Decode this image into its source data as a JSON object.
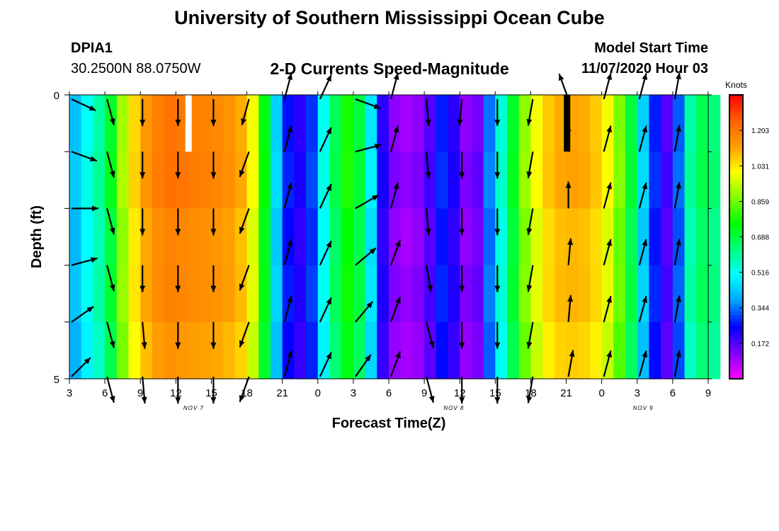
{
  "title": "University of Southern Mississippi Ocean Cube",
  "station": {
    "id": "DPIA1",
    "coords": "30.2500N 88.0750W"
  },
  "model_start": {
    "label": "Model Start Time",
    "value": "11/07/2020 Hour 03"
  },
  "footer_title": "University of Southern Mississippi Ocean Cube",
  "chart_data": {
    "type": "heatmap",
    "title": "2-D Currents Speed-Magnitude",
    "xlabel": "Forecast Time(Z)",
    "ylabel": "Depth (ft)",
    "x_tick_labels": [
      "3",
      "6",
      "9",
      "12",
      "15",
      "18",
      "21",
      "0",
      "3",
      "6",
      "9",
      "12",
      "15",
      "18",
      "21",
      "0",
      "3",
      "6",
      "9"
    ],
    "x_hours": [
      0,
      3,
      6,
      9,
      12,
      15,
      18,
      21,
      24,
      27,
      30,
      33,
      36,
      39,
      42,
      45,
      48,
      51,
      54
    ],
    "xlim": [
      0,
      54
    ],
    "date_labels": [
      {
        "text": "NOV 7",
        "hour": 10.5
      },
      {
        "text": "NOV 8",
        "hour": 32.5
      },
      {
        "text": "NOV 9",
        "hour": 48.5
      }
    ],
    "y_tick_labels": [
      "0",
      "5"
    ],
    "ylim": [
      0,
      5
    ],
    "depth_bins": 5,
    "colorbar": {
      "unit": "Knots",
      "ticks": [
        "1.203",
        "1.031",
        "0.859",
        "0.688",
        "0.516",
        "0.344",
        "0.172"
      ],
      "min": 0.0,
      "max": 1.375,
      "colors": [
        "#ff00ff",
        "#8000ff",
        "#0000ff",
        "#00a0ff",
        "#00ffff",
        "#00ff80",
        "#00ff00",
        "#80ff00",
        "#ffff00",
        "#ffa000",
        "#ff6000",
        "#ff0000"
      ]
    },
    "speed_by_hour": [
      0.43,
      0.52,
      0.6,
      0.72,
      0.92,
      1.06,
      1.15,
      1.2,
      1.22,
      1.21,
      1.2,
      1.19,
      1.18,
      1.16,
      1.12,
      1.0,
      0.75,
      0.45,
      0.27,
      0.22,
      0.3,
      0.52,
      0.68,
      0.78,
      0.7,
      0.48,
      0.22,
      0.12,
      0.1,
      0.12,
      0.18,
      0.28,
      0.22,
      0.12,
      0.15,
      0.35,
      0.55,
      0.72,
      0.9,
      1.0,
      1.08,
      1.12,
      1.13,
      1.12,
      1.08,
      1.0,
      0.88,
      0.7,
      0.45,
      0.28,
      0.18,
      0.33,
      0.6,
      0.68,
      0.64
    ],
    "vector_columns": [
      {
        "hour": 0,
        "angles": [
          115,
          110,
          90,
          75,
          55,
          45
        ]
      },
      {
        "hour": 3,
        "angles": [
          165,
          165,
          165,
          165,
          165,
          165
        ]
      },
      {
        "hour": 6,
        "angles": [
          180,
          180,
          180,
          180,
          175,
          175
        ]
      },
      {
        "hour": 9,
        "angles": [
          180,
          180,
          180,
          180,
          180,
          180
        ]
      },
      {
        "hour": 12,
        "angles": [
          180,
          180,
          180,
          180,
          180,
          180
        ]
      },
      {
        "hour": 15,
        "angles": [
          195,
          200,
          200,
          200,
          200,
          200
        ]
      },
      {
        "hour": 18,
        "angles": [
          15,
          15,
          15,
          15,
          15,
          15
        ]
      },
      {
        "hour": 21,
        "angles": [
          25,
          25,
          25,
          25,
          25,
          25
        ]
      },
      {
        "hour": 24,
        "angles": [
          110,
          75,
          60,
          50,
          40,
          35
        ]
      },
      {
        "hour": 27,
        "angles": [
          15,
          15,
          15,
          20,
          20,
          20
        ]
      },
      {
        "hour": 30,
        "angles": [
          175,
          175,
          175,
          170,
          165,
          165
        ]
      },
      {
        "hour": 33,
        "angles": [
          185,
          180,
          180,
          180,
          180,
          180
        ]
      },
      {
        "hour": 36,
        "angles": [
          180,
          180,
          180,
          180,
          180,
          180
        ]
      },
      {
        "hour": 39,
        "angles": [
          190,
          190,
          190,
          190,
          190,
          190
        ]
      },
      {
        "hour": 42,
        "angles": [
          340,
          0,
          0,
          5,
          5,
          10
        ]
      },
      {
        "hour": 45,
        "angles": [
          15,
          15,
          15,
          15,
          15,
          15
        ]
      },
      {
        "hour": 48,
        "angles": [
          15,
          15,
          15,
          15,
          15,
          15
        ]
      },
      {
        "hour": 51,
        "angles": [
          10,
          10,
          10,
          10,
          10,
          10
        ]
      }
    ],
    "vector_depth_rows": [
      0.05,
      1.0,
      2.0,
      3.0,
      4.0,
      5.0
    ],
    "gap_markers": [
      {
        "hour": 9.8,
        "color": "#ffffff"
      },
      {
        "hour": 41.8,
        "color": "#000000"
      }
    ]
  }
}
